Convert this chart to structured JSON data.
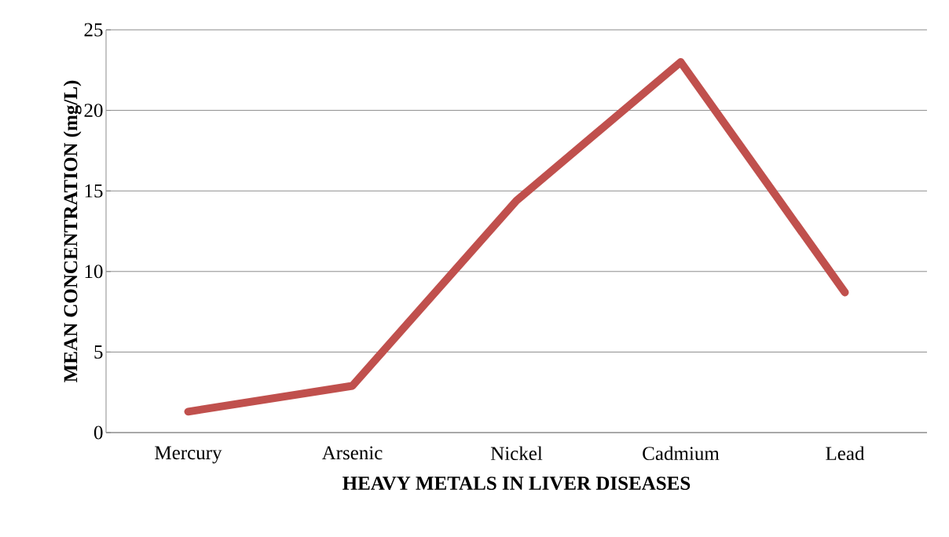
{
  "chart_data": {
    "type": "line",
    "xlabel": "HEAVY METALS IN LIVER DISEASES",
    "ylabel": "MEAN CONCENTRATION (mg/L)",
    "categories": [
      "Mercury",
      "Arsenic",
      "Nickel",
      "Cadmium",
      "Lead"
    ],
    "series": [
      {
        "color": "#c0504d",
        "values": [
          1.3,
          2.9,
          14.4,
          23.0,
          8.7
        ]
      }
    ],
    "ylim": [
      0,
      25
    ],
    "yticks": [
      0,
      5,
      10,
      15,
      20,
      25
    ],
    "grid": "y",
    "marker": "none",
    "line_style": "solid"
  }
}
